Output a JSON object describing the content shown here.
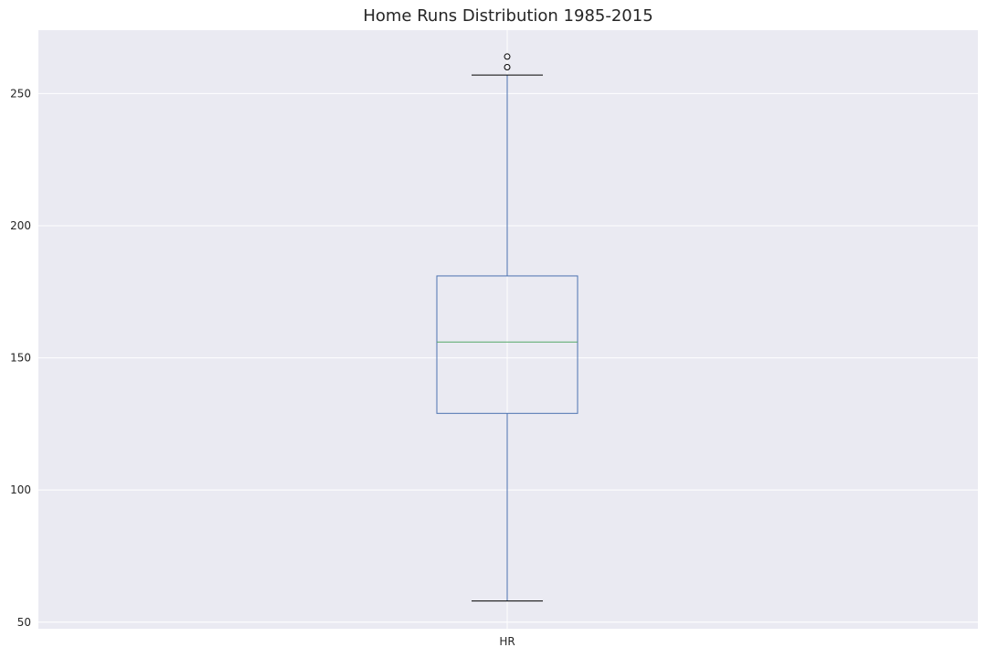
{
  "chart_data": {
    "type": "box",
    "title": "Home Runs Distribution 1985-2015",
    "xlabel": "",
    "ylabel": "",
    "categories": [
      "HR"
    ],
    "yticks": [
      50,
      100,
      150,
      200,
      250
    ],
    "ylim": [
      47.5,
      274
    ],
    "grid": true,
    "boxes": [
      {
        "category": "HR",
        "whisker_low": 58,
        "q1": 129,
        "median": 156,
        "q3": 181,
        "whisker_high": 257,
        "outliers": [
          260,
          264
        ]
      }
    ],
    "colors": {
      "plot_background": "#eaeaf2",
      "grid": "#ffffff",
      "box": "#4c72b0",
      "median": "#55a868",
      "whisker_cap": "#000000",
      "outlier": "#000000"
    }
  }
}
